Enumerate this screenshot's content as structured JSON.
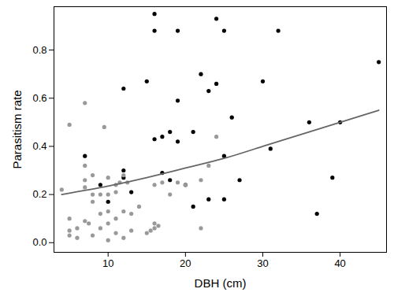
{
  "chart_data": {
    "type": "scatter",
    "x_label": "DBH (cm)",
    "y_label": "Parasitism rate",
    "xlim": [
      3,
      46
    ],
    "ylim": [
      -0.04,
      0.98
    ],
    "xticks": [
      10,
      20,
      30,
      40
    ],
    "yticks": [
      {
        "value": 0.0,
        "label": "0.0"
      },
      {
        "value": 0.2,
        "label": "0.2"
      },
      {
        "value": 0.4,
        "label": "0.4"
      },
      {
        "value": 0.6,
        "label": "0.6"
      },
      {
        "value": 0.8,
        "label": "0.8"
      }
    ],
    "grid": false,
    "series": [
      {
        "type": "scatter",
        "color": "#000000",
        "marker": "circle",
        "x": [
          16,
          16,
          19,
          24,
          25,
          32,
          45,
          22,
          12,
          15,
          24,
          30,
          23,
          19,
          26,
          36,
          40,
          18,
          21,
          16,
          17,
          19,
          25,
          7,
          31,
          12,
          17,
          12,
          18,
          9,
          13,
          20,
          27,
          39,
          10,
          21,
          23,
          25,
          37
        ],
        "y": [
          0.95,
          0.88,
          0.88,
          0.93,
          0.88,
          0.88,
          0.75,
          0.7,
          0.64,
          0.67,
          0.66,
          0.67,
          0.63,
          0.59,
          0.52,
          0.5,
          0.5,
          0.46,
          0.46,
          0.43,
          0.44,
          0.42,
          0.36,
          0.36,
          0.39,
          0.3,
          0.29,
          0.27,
          0.26,
          0.24,
          0.21,
          0.24,
          0.26,
          0.27,
          0.17,
          0.15,
          0.18,
          0.18,
          0.12
        ]
      },
      {
        "type": "scatter",
        "color": "#999999",
        "marker": "circle",
        "x": [
          4,
          5,
          7,
          9.5,
          5,
          5,
          5,
          6,
          6,
          7,
          7,
          7,
          7,
          7.5,
          8,
          8,
          8,
          8,
          9,
          9,
          9,
          10,
          10,
          10,
          10,
          10,
          11,
          11,
          11,
          11,
          11.5,
          12,
          12,
          12,
          12.5,
          13,
          13,
          14,
          15,
          15.5,
          16,
          16,
          16,
          16.5,
          17,
          18,
          19,
          22,
          22,
          23,
          24,
          20
        ],
        "y": [
          0.22,
          0.49,
          0.58,
          0.48,
          0.1,
          0.05,
          0.03,
          0.02,
          0.06,
          0.09,
          0.23,
          0.26,
          0.32,
          0.08,
          0.03,
          0.17,
          0.2,
          0.28,
          0.06,
          0.12,
          0.2,
          0.08,
          0.13,
          0.2,
          0.27,
          0.01,
          0.1,
          0.21,
          0.24,
          0.04,
          0.25,
          0.13,
          0.28,
          0.02,
          0.25,
          0.12,
          0.05,
          0.15,
          0.04,
          0.05,
          0.24,
          0.06,
          0.08,
          0.07,
          0.25,
          0.2,
          0.25,
          0.26,
          0.06,
          0.32,
          0.44,
          0.24
        ]
      },
      {
        "type": "line",
        "color": "#666666",
        "line_style": "solid",
        "x": [
          4,
          10,
          15,
          20,
          25,
          30,
          35,
          40,
          45
        ],
        "y": [
          0.2,
          0.235,
          0.27,
          0.31,
          0.35,
          0.4,
          0.45,
          0.5,
          0.55
        ]
      }
    ]
  }
}
